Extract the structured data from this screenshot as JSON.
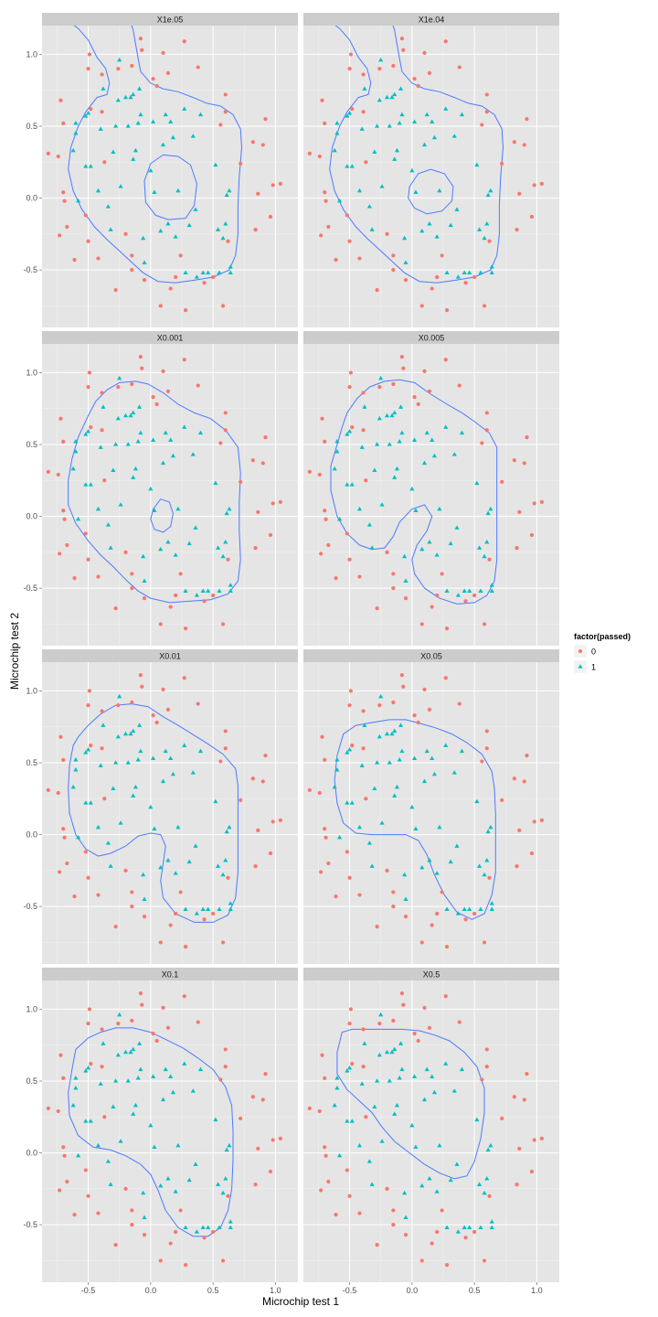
{
  "chart_data": {
    "type": "scatter",
    "facet_labels": [
      "X1e.05",
      "X1e.04",
      "X0.001",
      "X0.005",
      "X0.01",
      "X0.05",
      "X0.1",
      "X0.5"
    ],
    "xlabel": "Microchip test 1",
    "ylabel": "Microchip test 2",
    "x_ticks": [
      "-0.5",
      "0.0",
      "0.5",
      "1.0"
    ],
    "y_ticks": [
      "-0.5",
      "0.0",
      "0.5",
      "1.0"
    ],
    "xlim": [
      -0.87,
      1.18
    ],
    "ylim": [
      -0.9,
      1.2
    ],
    "grid": true,
    "legend": {
      "title": "factor(passed)",
      "position": "right",
      "entries": [
        {
          "label": "0",
          "shape": "circle",
          "color": "#F8766D"
        },
        {
          "label": "1",
          "shape": "triangle",
          "color": "#00BFC4"
        }
      ]
    },
    "boundary_color": "#4C7BFF",
    "series": [
      {
        "name": "0",
        "color": "#F8766D",
        "points": [
          [
            -0.82,
            0.31
          ],
          [
            -0.74,
            0.29
          ],
          [
            -0.72,
            0.68
          ],
          [
            -0.7,
            0.52
          ],
          [
            -0.7,
            0.04
          ],
          [
            -0.69,
            -0.02
          ],
          [
            -0.73,
            -0.26
          ],
          [
            -0.67,
            -0.2
          ],
          [
            -0.61,
            -0.43
          ],
          [
            -0.52,
            -0.12
          ],
          [
            -0.5,
            -0.3
          ],
          [
            -0.5,
            0.9
          ],
          [
            -0.49,
            1.0
          ],
          [
            -0.48,
            0.62
          ],
          [
            -0.42,
            -0.42
          ],
          [
            -0.39,
            0.6
          ],
          [
            -0.39,
            0.86
          ],
          [
            -0.37,
            0.25
          ],
          [
            -0.28,
            -0.64
          ],
          [
            -0.26,
            0.9
          ],
          [
            -0.2,
            -0.25
          ],
          [
            -0.15,
            -0.5
          ],
          [
            -0.15,
            0.92
          ],
          [
            -0.15,
            -0.4
          ],
          [
            -0.08,
            1.11
          ],
          [
            -0.07,
            1.03
          ],
          [
            -0.05,
            -0.57
          ],
          [
            0.02,
            0.83
          ],
          [
            0.05,
            0.78
          ],
          [
            0.08,
            -0.75
          ],
          [
            0.1,
            1.01
          ],
          [
            0.14,
            0.87
          ],
          [
            0.16,
            -0.63
          ],
          [
            0.2,
            -0.55
          ],
          [
            0.24,
            -0.4
          ],
          [
            0.27,
            1.09
          ],
          [
            0.28,
            -0.78
          ],
          [
            0.38,
            0.91
          ],
          [
            0.43,
            -0.59
          ],
          [
            0.5,
            -0.55
          ],
          [
            0.56,
            0.51
          ],
          [
            0.58,
            -0.75
          ],
          [
            0.6,
            0.72
          ],
          [
            0.6,
            0.6
          ],
          [
            0.62,
            -0.3
          ],
          [
            0.72,
            0.24
          ],
          [
            0.82,
            0.39
          ],
          [
            0.84,
            -0.22
          ],
          [
            0.86,
            0.03
          ],
          [
            0.9,
            0.37
          ],
          [
            0.92,
            0.55
          ],
          [
            0.96,
            -0.13
          ],
          [
            0.98,
            0.09
          ],
          [
            1.04,
            0.1
          ]
        ]
      },
      {
        "name": "1",
        "color": "#00BFC4",
        "points": [
          [
            -0.62,
            0.33
          ],
          [
            -0.6,
            0.45
          ],
          [
            -0.6,
            0.52
          ],
          [
            -0.58,
            -0.02
          ],
          [
            -0.52,
            0.22
          ],
          [
            -0.52,
            0.57
          ],
          [
            -0.5,
            0.59
          ],
          [
            -0.48,
            0.22
          ],
          [
            -0.42,
            0.05
          ],
          [
            -0.4,
            0.48
          ],
          [
            -0.38,
            0.76
          ],
          [
            -0.34,
            -0.06
          ],
          [
            -0.32,
            -0.22
          ],
          [
            -0.3,
            0.32
          ],
          [
            -0.28,
            0.5
          ],
          [
            -0.26,
            0.68
          ],
          [
            -0.25,
            0.96
          ],
          [
            -0.24,
            0.08
          ],
          [
            -0.2,
            0.7
          ],
          [
            -0.18,
            0.5
          ],
          [
            -0.16,
            0.7
          ],
          [
            -0.14,
            0.72
          ],
          [
            -0.14,
            0.27
          ],
          [
            -0.12,
            0.33
          ],
          [
            -0.1,
            0.52
          ],
          [
            -0.09,
            0.76
          ],
          [
            -0.08,
            0.58
          ],
          [
            -0.06,
            -0.28
          ],
          [
            -0.05,
            -0.45
          ],
          [
            0.0,
            0.19
          ],
          [
            0.02,
            0.53
          ],
          [
            0.03,
            0.04
          ],
          [
            0.08,
            -0.23
          ],
          [
            0.1,
            0.37
          ],
          [
            0.12,
            0.58
          ],
          [
            0.14,
            -0.18
          ],
          [
            0.16,
            0.53
          ],
          [
            0.18,
            0.42
          ],
          [
            0.2,
            -0.27
          ],
          [
            0.22,
            0.05
          ],
          [
            0.27,
            0.62
          ],
          [
            0.28,
            -0.52
          ],
          [
            0.31,
            -0.19
          ],
          [
            0.34,
            0.43
          ],
          [
            0.36,
            -0.08
          ],
          [
            0.37,
            -0.55
          ],
          [
            0.4,
            0.58
          ],
          [
            0.42,
            -0.52
          ],
          [
            0.46,
            -0.52
          ],
          [
            0.52,
            0.23
          ],
          [
            0.54,
            -0.22
          ],
          [
            0.55,
            -0.52
          ],
          [
            0.58,
            -0.28
          ],
          [
            0.6,
            -0.18
          ],
          [
            0.61,
            0.02
          ],
          [
            0.63,
            0.05
          ],
          [
            0.64,
            -0.48
          ],
          [
            0.64,
            -0.52
          ]
        ]
      }
    ]
  }
}
